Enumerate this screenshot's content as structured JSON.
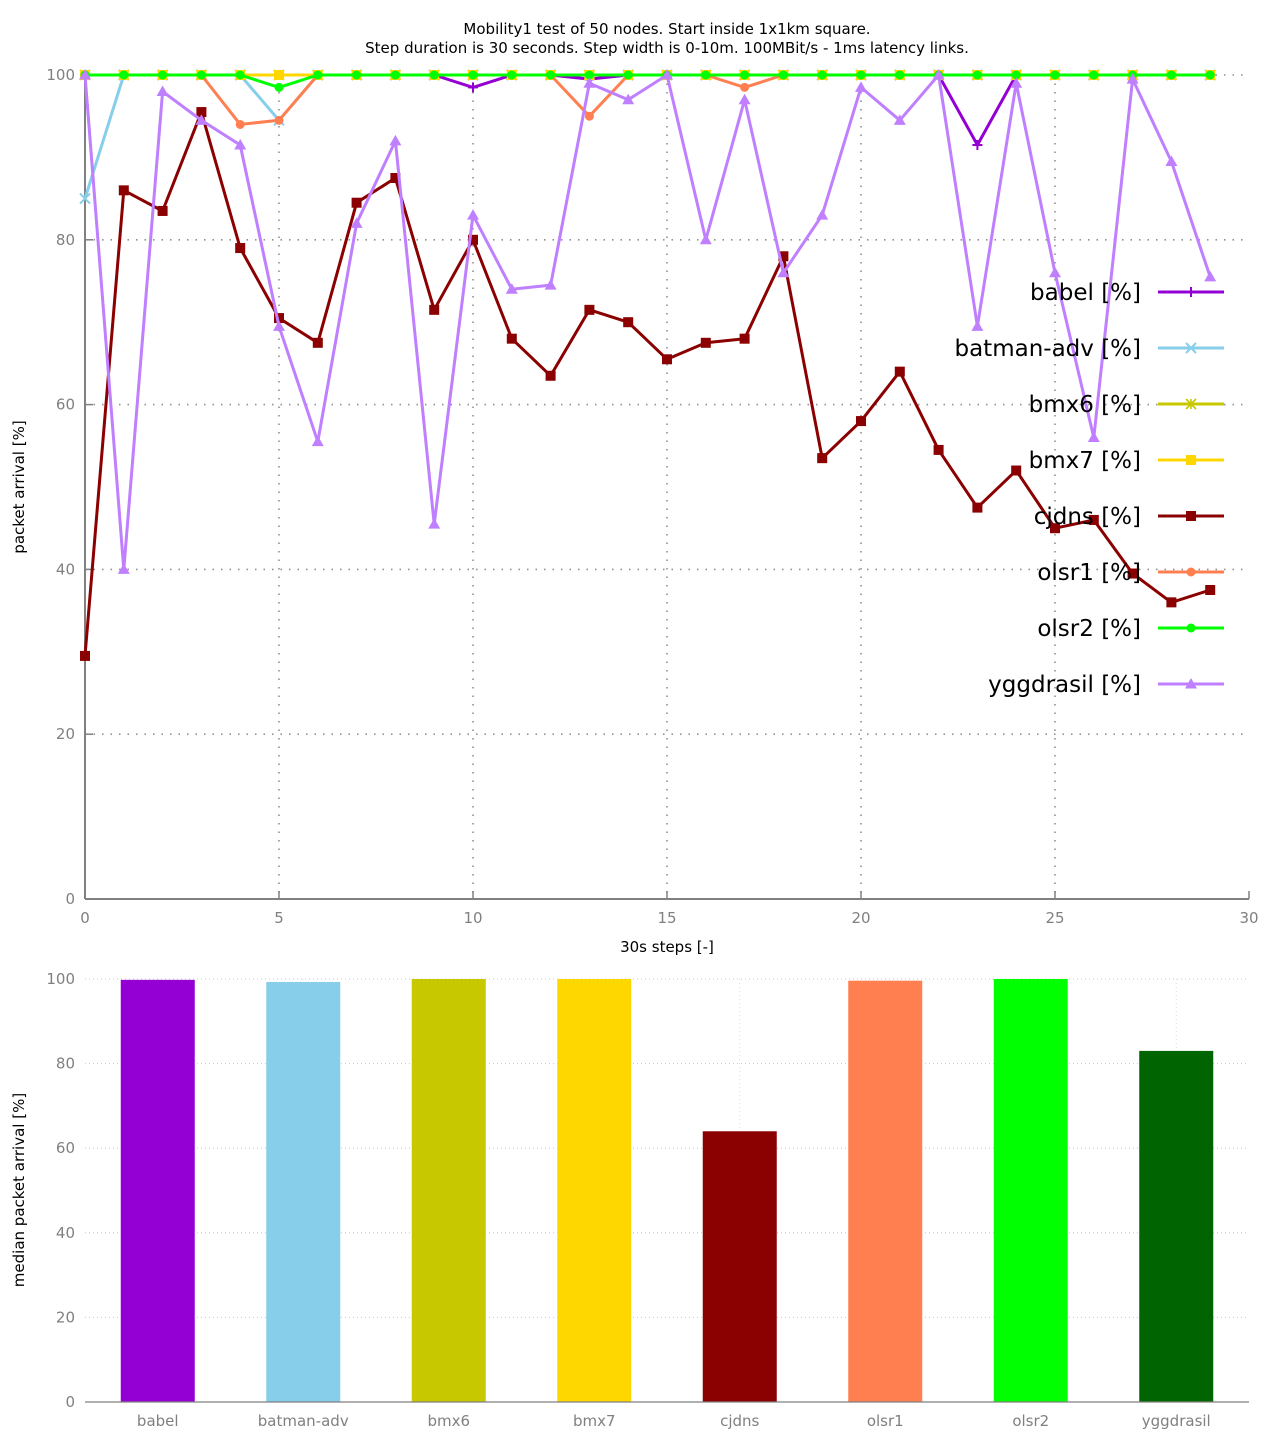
{
  "chart_data": [
    {
      "type": "line",
      "title_lines": [
        "Mobility1 test of 50 nodes. Start inside 1x1km square.",
        "Step duration is 30 seconds. Step width is 0-10m. 100MBit/s - 1ms latency links."
      ],
      "xlabel": "30s steps [-]",
      "ylabel": "packet arrival [%]",
      "xlim": [
        0,
        30
      ],
      "ylim": [
        0,
        100
      ],
      "xticks": [
        0,
        5,
        10,
        15,
        20,
        25,
        30
      ],
      "yticks": [
        0,
        20,
        40,
        60,
        80,
        100
      ],
      "grid": true,
      "legend_position": "right",
      "x": [
        0,
        1,
        2,
        3,
        4,
        5,
        6,
        7,
        8,
        9,
        10,
        11,
        12,
        13,
        14,
        15,
        16,
        17,
        18,
        19,
        20,
        21,
        22,
        23,
        24,
        25,
        26,
        27,
        28,
        29
      ],
      "series": [
        {
          "name": "babel [%]",
          "color": "#9400d3",
          "marker": "plus",
          "values": [
            100,
            100,
            100,
            100,
            100,
            100,
            100,
            100,
            100,
            100,
            98.5,
            100,
            100,
            99.5,
            100,
            100,
            100,
            100,
            100,
            100,
            100,
            100,
            100,
            91.5,
            100,
            100,
            100,
            100,
            100,
            100
          ]
        },
        {
          "name": "batman-adv [%]",
          "color": "#87ceeb",
          "marker": "cross",
          "values": [
            85,
            100,
            100,
            100,
            100,
            94.5,
            100,
            100,
            100,
            100,
            100,
            100,
            100,
            100,
            100,
            100,
            100,
            100,
            100,
            100,
            100,
            100,
            100,
            100,
            100,
            100,
            100,
            100,
            100,
            100
          ]
        },
        {
          "name": "bmx6 [%]",
          "color": "#c8c800",
          "marker": "star",
          "values": [
            100,
            100,
            100,
            100,
            100,
            100,
            100,
            100,
            100,
            100,
            100,
            100,
            100,
            100,
            100,
            100,
            100,
            100,
            100,
            100,
            100,
            100,
            100,
            100,
            100,
            100,
            100,
            100,
            100,
            100
          ]
        },
        {
          "name": "bmx7 [%]",
          "color": "#ffd700",
          "marker": "square",
          "values": [
            100,
            100,
            100,
            100,
            100,
            100,
            100,
            100,
            100,
            100,
            100,
            100,
            100,
            100,
            100,
            100,
            100,
            100,
            100,
            100,
            100,
            100,
            100,
            100,
            100,
            100,
            100,
            100,
            100,
            100
          ]
        },
        {
          "name": "cjdns [%]",
          "color": "#8b0000",
          "marker": "square",
          "values": [
            29.5,
            86,
            83.5,
            95.5,
            79,
            70.5,
            67.5,
            84.5,
            87.5,
            71.5,
            80,
            68,
            63.5,
            71.5,
            70,
            65.5,
            67.5,
            68,
            78,
            53.5,
            58,
            64,
            54.5,
            47.5,
            52,
            45,
            46,
            39.5,
            36,
            37.5
          ]
        },
        {
          "name": "olsr1 [%]",
          "color": "#ff7f50",
          "marker": "circle",
          "values": [
            100,
            100,
            100,
            100,
            94,
            94.5,
            100,
            100,
            100,
            100,
            100,
            100,
            100,
            95,
            100,
            100,
            100,
            98.5,
            100,
            100,
            100,
            100,
            100,
            100,
            100,
            100,
            100,
            100,
            100,
            100
          ]
        },
        {
          "name": "olsr2 [%]",
          "color": "#00ff00",
          "marker": "circle",
          "values": [
            100,
            100,
            100,
            100,
            100,
            98.5,
            100,
            100,
            100,
            100,
            100,
            100,
            100,
            100,
            100,
            100,
            100,
            100,
            100,
            100,
            100,
            100,
            100,
            100,
            100,
            100,
            100,
            100,
            100,
            100
          ]
        },
        {
          "name": "yggdrasil [%]",
          "color": "#bf7fff",
          "marker": "triangle",
          "values": [
            100,
            40,
            98,
            94.5,
            91.5,
            69.5,
            55.5,
            82,
            92,
            45.5,
            83,
            74,
            74.5,
            99,
            97,
            100,
            80,
            97,
            76,
            83,
            98.5,
            94.5,
            100,
            69.5,
            99,
            76,
            56,
            99.5,
            89.5,
            75.5
          ]
        }
      ]
    },
    {
      "type": "bar",
      "ylabel": "median packet arrival [%]",
      "ylim": [
        0,
        100
      ],
      "yticks": [
        0,
        20,
        40,
        60,
        80,
        100
      ],
      "grid": true,
      "categories": [
        "babel",
        "batman-adv",
        "bmx6",
        "bmx7",
        "cjdns",
        "olsr1",
        "olsr2",
        "yggdrasil"
      ],
      "values": [
        99.8,
        99.3,
        100,
        100,
        64,
        99.6,
        100,
        83
      ],
      "colors": [
        "#9400d3",
        "#87ceeb",
        "#c8c800",
        "#ffd700",
        "#8b0000",
        "#ff7f50",
        "#00ff00",
        "#006400"
      ]
    }
  ]
}
